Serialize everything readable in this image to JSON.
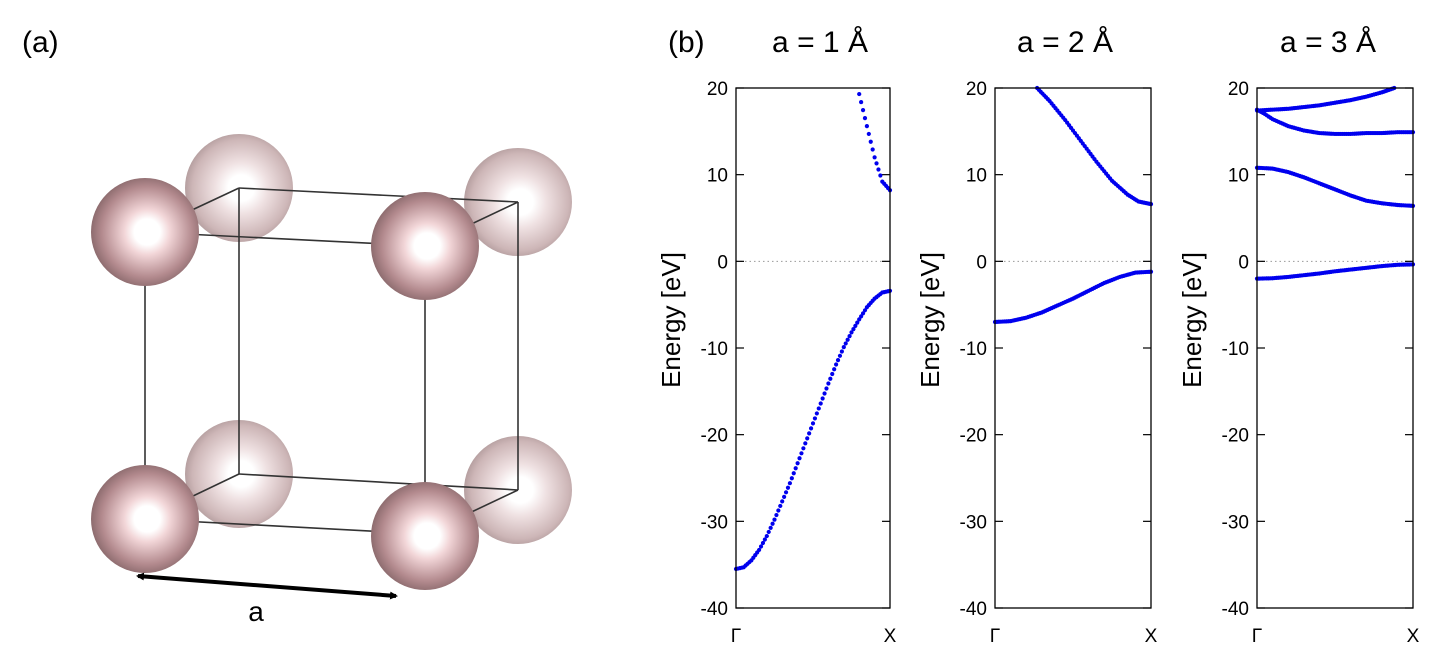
{
  "panel_a": {
    "label": "(a)",
    "lattice_label": "a",
    "atom_color": "#b38a8e",
    "edge_color": "#333333"
  },
  "panel_b": {
    "label": "(b)"
  },
  "chart_data": [
    {
      "type": "scatter",
      "title": "a = 1  Å",
      "ylabel": "Energy [eV]",
      "xlabel": "",
      "x_ticks": [
        "Γ",
        "X"
      ],
      "ylim": [
        -40,
        20
      ],
      "y_ticks": [
        20,
        10,
        0,
        -10,
        -20,
        -30,
        -40
      ],
      "grid": false,
      "reference_line": 0,
      "marker_color": "#0000ee",
      "series": [
        {
          "x": [
            0,
            0.05,
            0.1,
            0.15,
            0.2,
            0.25,
            0.3,
            0.35,
            0.4,
            0.45,
            0.5,
            0.55,
            0.6,
            0.65,
            0.7,
            0.75,
            0.8,
            0.85,
            0.9,
            0.95,
            1.0
          ],
          "y": [
            -35.5,
            -35.3,
            -34.5,
            -33.3,
            -31.7,
            -29.8,
            -27.7,
            -25.6,
            -23.3,
            -21.0,
            -18.7,
            -16.4,
            -14.1,
            -11.9,
            -9.9,
            -8.2,
            -6.7,
            -5.3,
            -4.3,
            -3.6,
            -3.4
          ]
        },
        {
          "x": [
            0.8,
            0.85,
            0.9,
            0.95,
            1.0
          ],
          "y": [
            19.3,
            15.6,
            12.0,
            9.2,
            8.2
          ]
        }
      ]
    },
    {
      "type": "scatter",
      "title": "a = 2  Å",
      "ylabel": "Energy [eV]",
      "xlabel": "",
      "x_ticks": [
        "Γ",
        "X"
      ],
      "ylim": [
        -40,
        20
      ],
      "y_ticks": [
        20,
        10,
        0,
        -10,
        -20,
        -30,
        -40
      ],
      "grid": false,
      "reference_line": 0,
      "marker_color": "#0000ee",
      "series": [
        {
          "x": [
            0,
            0.1,
            0.2,
            0.3,
            0.4,
            0.5,
            0.6,
            0.7,
            0.8,
            0.9,
            1.0
          ],
          "y": [
            -7.0,
            -6.9,
            -6.5,
            -5.9,
            -5.1,
            -4.3,
            -3.4,
            -2.5,
            -1.8,
            -1.3,
            -1.2
          ]
        },
        {
          "x": [
            0.27,
            0.35,
            0.45,
            0.55,
            0.65,
            0.75,
            0.85,
            0.92,
            1.0
          ],
          "y": [
            20.0,
            18.5,
            16.3,
            13.9,
            11.5,
            9.3,
            7.7,
            6.9,
            6.6
          ]
        }
      ]
    },
    {
      "type": "scatter",
      "title": "a = 3  Å",
      "ylabel": "Energy [eV]",
      "xlabel": "",
      "x_ticks": [
        "Γ",
        "X"
      ],
      "ylim": [
        -40,
        20
      ],
      "y_ticks": [
        20,
        10,
        0,
        -10,
        -20,
        -30,
        -40
      ],
      "grid": false,
      "reference_line": 0,
      "marker_color": "#0000ee",
      "series": [
        {
          "x": [
            0,
            0.1,
            0.2,
            0.3,
            0.4,
            0.5,
            0.6,
            0.7,
            0.8,
            0.9,
            1.0
          ],
          "y": [
            -2.0,
            -1.95,
            -1.8,
            -1.6,
            -1.4,
            -1.15,
            -0.95,
            -0.75,
            -0.55,
            -0.4,
            -0.35
          ]
        },
        {
          "x": [
            0,
            0.1,
            0.2,
            0.3,
            0.4,
            0.5,
            0.6,
            0.7,
            0.8,
            0.9,
            1.0
          ],
          "y": [
            10.8,
            10.7,
            10.3,
            9.7,
            9.0,
            8.3,
            7.6,
            7.0,
            6.7,
            6.5,
            6.4
          ]
        },
        {
          "x": [
            0,
            0.05,
            0.1,
            0.2,
            0.3,
            0.4,
            0.5,
            0.6,
            0.7,
            0.8,
            0.9,
            1.0
          ],
          "y": [
            17.5,
            17.0,
            16.4,
            15.6,
            15.1,
            14.8,
            14.7,
            14.7,
            14.8,
            14.8,
            14.9,
            14.9
          ]
        },
        {
          "x": [
            0,
            0.1,
            0.2,
            0.3,
            0.4,
            0.5,
            0.6,
            0.7,
            0.8,
            0.88
          ],
          "y": [
            17.4,
            17.5,
            17.6,
            17.8,
            18.0,
            18.3,
            18.6,
            19.0,
            19.5,
            20.0
          ]
        }
      ]
    }
  ]
}
